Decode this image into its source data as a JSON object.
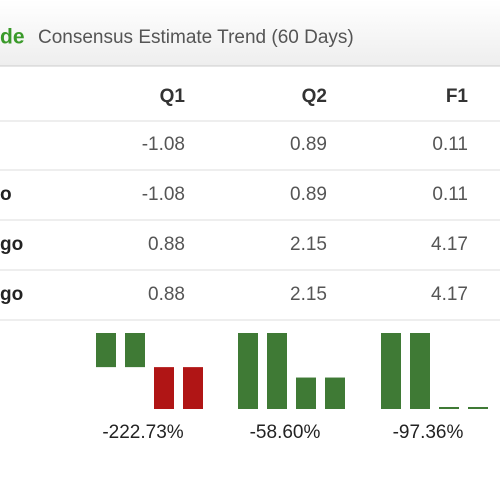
{
  "header": {
    "brand": "de",
    "title": "Consensus Estimate Trend (60 Days)"
  },
  "table": {
    "columns": [
      "Q1",
      "Q2",
      "F1"
    ],
    "rows": [
      {
        "values": [
          -1.08,
          0.89,
          0.11
        ]
      },
      {
        "label": "o",
        "values": [
          -1.08,
          0.89,
          0.11
        ]
      },
      {
        "label": "go",
        "values": [
          0.88,
          2.15,
          4.17
        ]
      },
      {
        "label": "go",
        "values": [
          0.88,
          2.15,
          4.17
        ]
      }
    ],
    "changes": [
      "-222.73%",
      "-58.60%",
      "-97.36%"
    ]
  }
}
